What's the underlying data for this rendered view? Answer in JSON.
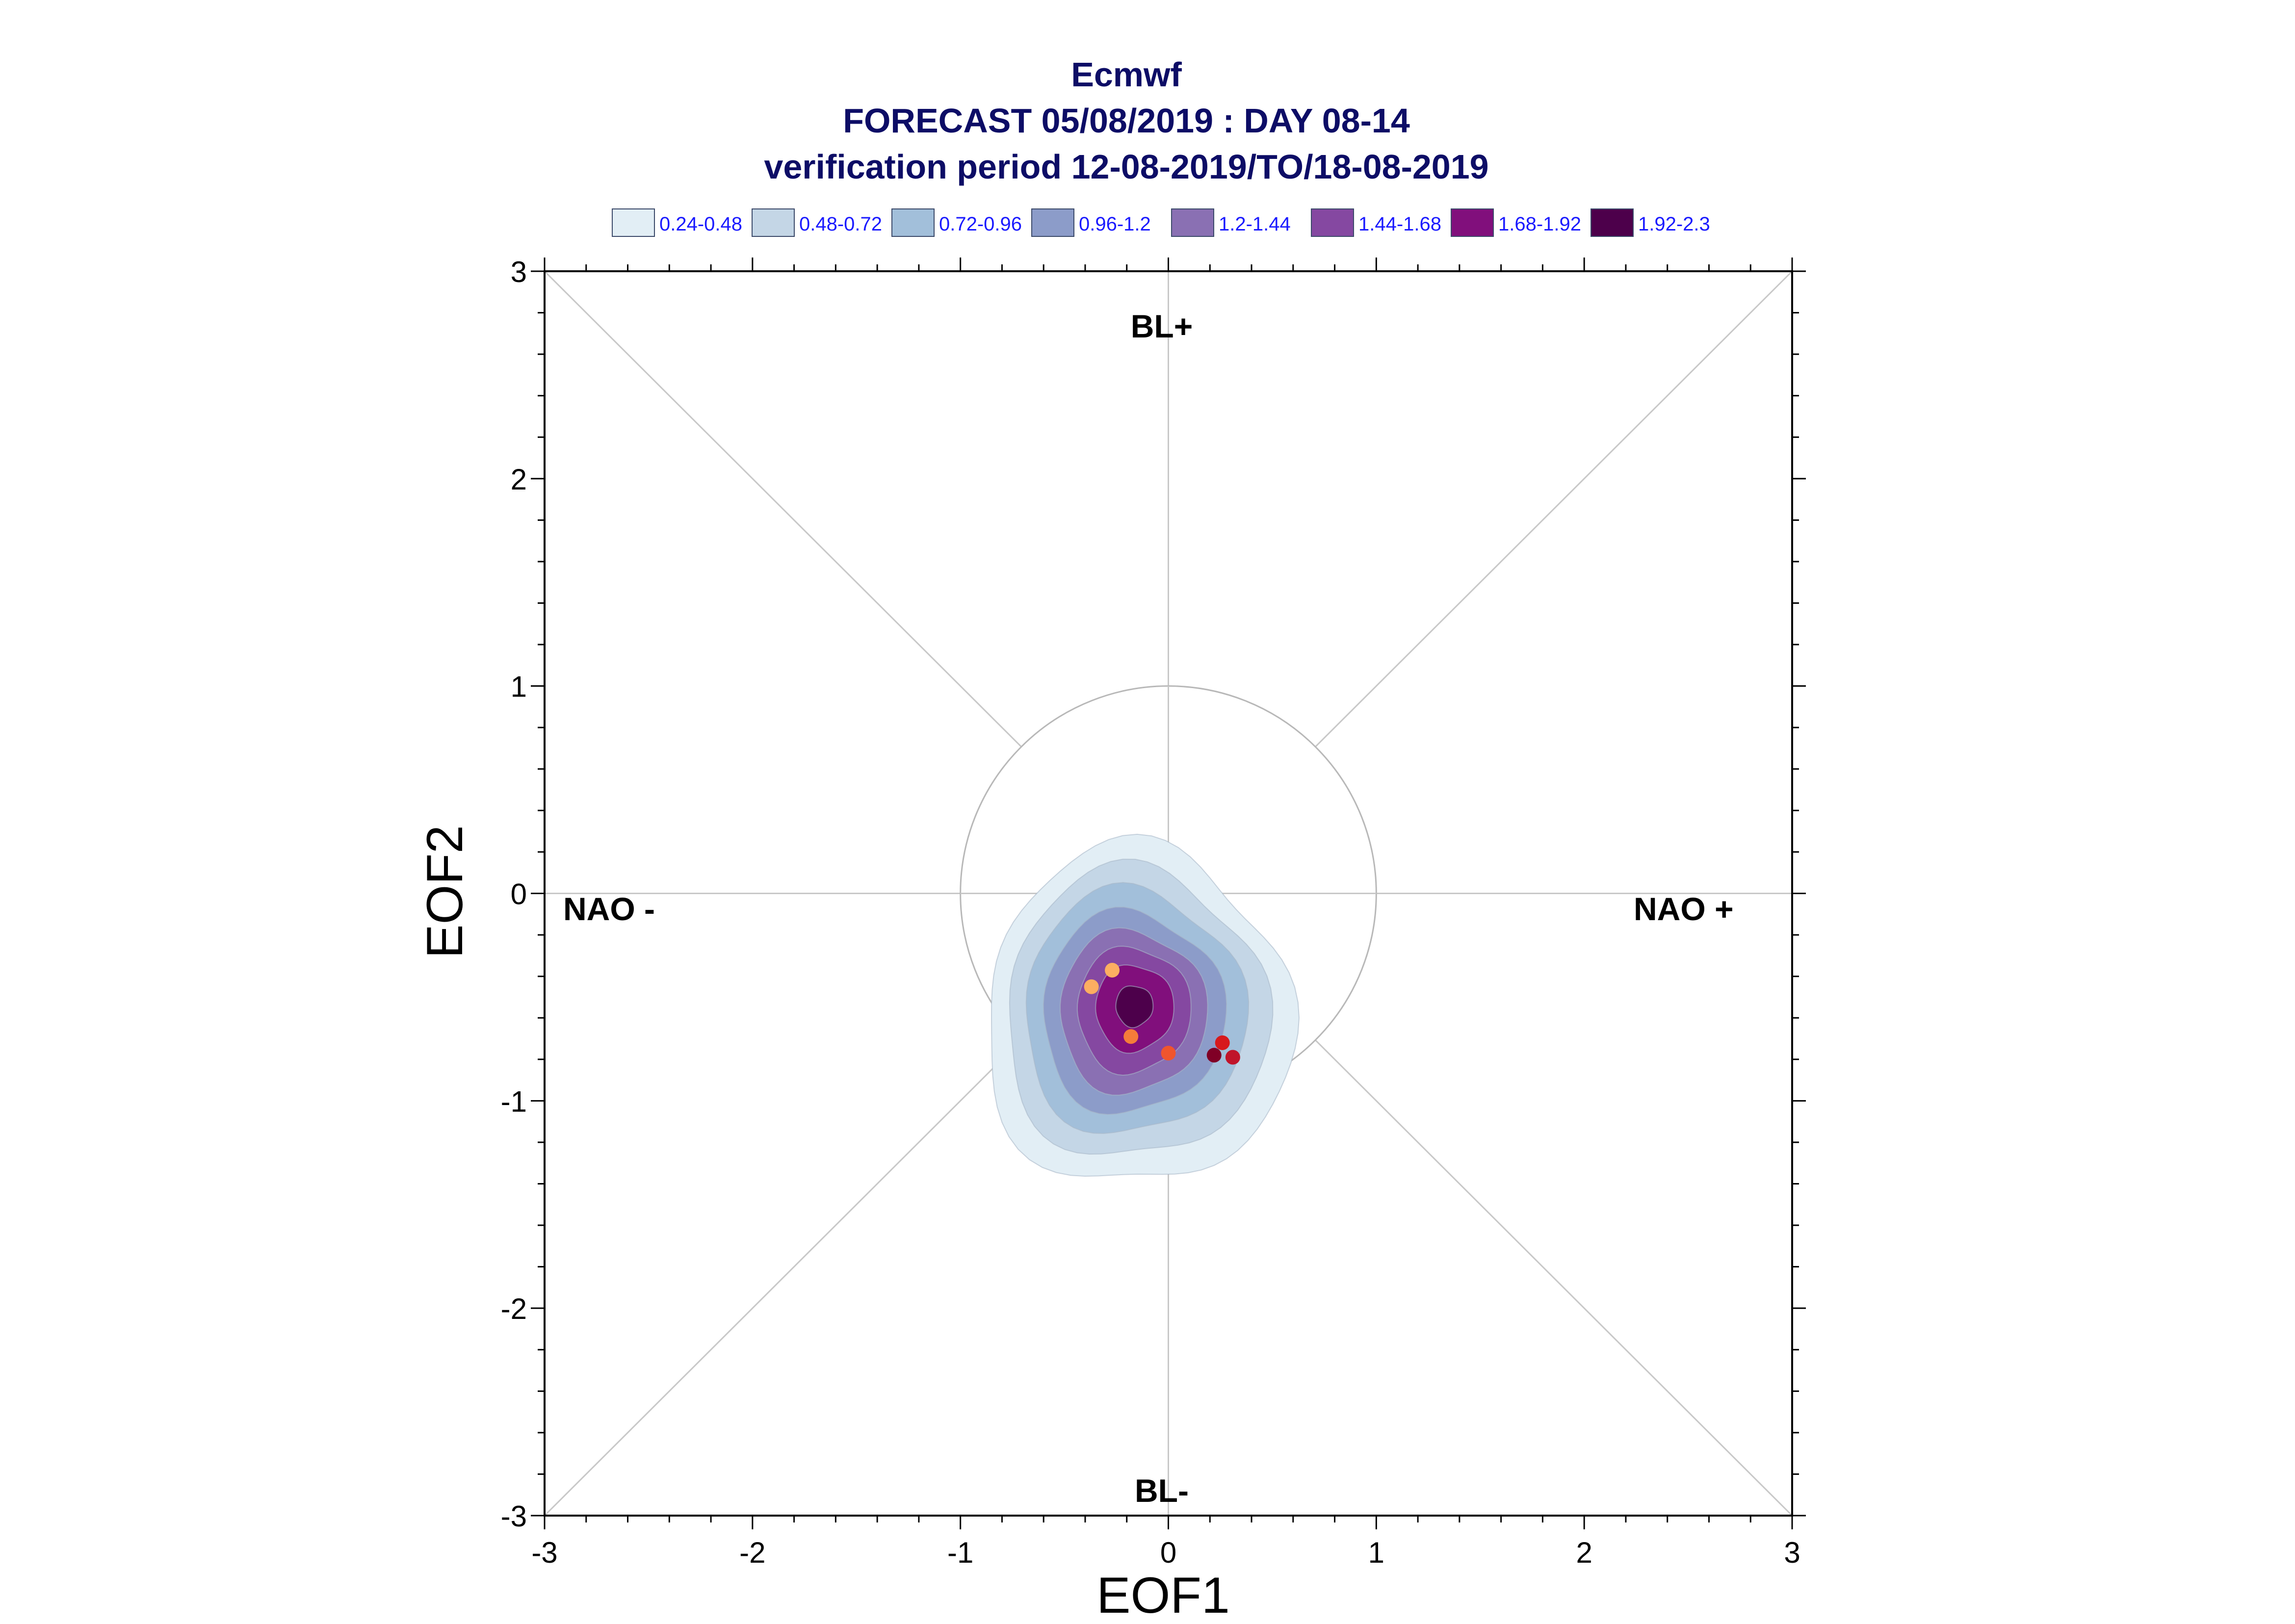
{
  "chart_data": {
    "type": "scatter",
    "title_lines": [
      "Ecmwf",
      "FORECAST 05/08/2019 : DAY 08-14",
      "verification period 12-08-2019/TO/18-08-2019"
    ],
    "xlabel": "EOF1",
    "ylabel": "EOF2",
    "xlim": [
      -3,
      3
    ],
    "ylim": [
      -3,
      3
    ],
    "x_ticks": [
      "-3",
      "-2",
      "-1",
      "0",
      "1",
      "2",
      "3"
    ],
    "y_ticks": [
      "-3",
      "-2",
      "-1",
      "0",
      "1",
      "2",
      "3"
    ],
    "regime_labels": {
      "top": "BL+",
      "bottom": "BL-",
      "left": "NAO -",
      "right": "NAO +"
    },
    "reference_circle_radius": 1,
    "legend": {
      "placement": "top",
      "entries": [
        {
          "label": "0.24-0.48",
          "color": "#e2eef5"
        },
        {
          "label": "0.48-0.72",
          "color": "#c4d6e6"
        },
        {
          "label": "0.72-0.96",
          "color": "#a2bfda"
        },
        {
          "label": "0.96-1.2",
          "color": "#8c9cc9"
        },
        {
          "label": "1.2-1.44",
          "color": "#8a70b3"
        },
        {
          "label": "1.44-1.68",
          "color": "#8548a1"
        },
        {
          "label": "1.68-1.92",
          "color": "#810f7c"
        },
        {
          "label": "1.92-2.3",
          "color": "#4d004b"
        }
      ]
    },
    "density_center": [
      -0.15,
      -0.6
    ],
    "points": [
      {
        "x": -0.27,
        "y": -0.37,
        "color": "#fdae61"
      },
      {
        "x": -0.37,
        "y": -0.45,
        "color": "#fdae61"
      },
      {
        "x": -0.18,
        "y": -0.69,
        "color": "#f57c3a"
      },
      {
        "x": 0.0,
        "y": -0.77,
        "color": "#f0552e"
      },
      {
        "x": 0.26,
        "y": -0.72,
        "color": "#d7191c"
      },
      {
        "x": 0.31,
        "y": -0.79,
        "color": "#c0142a"
      },
      {
        "x": 0.22,
        "y": -0.78,
        "color": "#800026"
      }
    ]
  }
}
